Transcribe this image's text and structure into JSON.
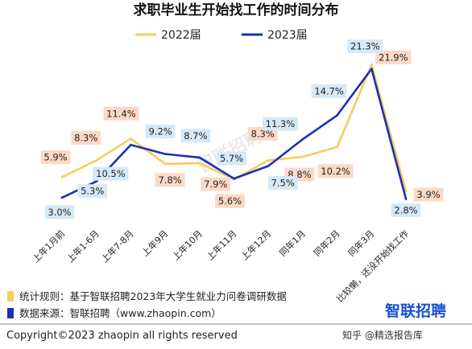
{
  "title": "求职毕业生开始找工作的时间分布",
  "chart_data": {
    "type": "line",
    "categories": [
      "上年1月前",
      "上年1-6月",
      "上年7-8月",
      "上年9月",
      "上年10月",
      "上年11月",
      "上年12月",
      "同年1月",
      "同年2月",
      "同年3月",
      "比较懒，还没开始找工作"
    ],
    "series": [
      {
        "name": "2022届",
        "color": "#f2cf5b",
        "label_bg": "#fbd9c6",
        "values": [
          5.9,
          8.3,
          11.4,
          7.8,
          7.9,
          5.6,
          8.3,
          8.8,
          10.2,
          21.9,
          3.9
        ],
        "labels": [
          "5.9%",
          "8.3%",
          "11.4%",
          "7.8%",
          "7.9%",
          "5.6%",
          "8.3%",
          "8.8%",
          "10.2%",
          "21.9%",
          "3.9%"
        ]
      },
      {
        "name": "2023届",
        "color": "#1f2fb8",
        "label_bg": "#d6e9f7",
        "values": [
          3.0,
          5.3,
          10.5,
          9.2,
          8.7,
          5.7,
          7.5,
          11.3,
          14.7,
          21.3,
          2.8
        ],
        "labels": [
          "3.0%",
          "5.3%",
          "10.5%",
          "9.2%",
          "8.7%",
          "5.7%",
          "7.5%",
          "11.3%",
          "14.7%",
          "21.3%",
          "2.8%"
        ]
      }
    ],
    "ylim": [
      0,
      24
    ],
    "legend_position": "top-center"
  },
  "footer": {
    "rule_label": "统计规则：基于智联招聘2023年大学生就业力问卷调研数据",
    "source_label": "数据来源：智联招聘（www.zhaopin.com）",
    "copyright": "Copyright©2023 zhaopin all rights reserved",
    "brand": "智联招聘",
    "watermark": "知乎 @精选报告库",
    "bg_watermark": "智联招聘"
  }
}
